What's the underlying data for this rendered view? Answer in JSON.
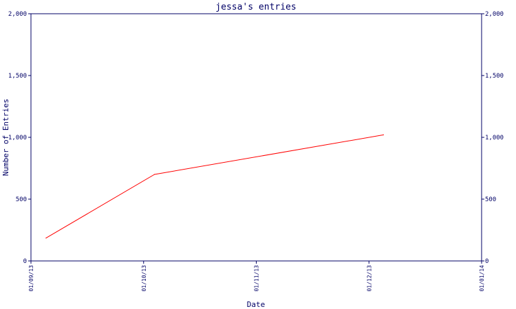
{
  "chart_data": {
    "type": "line",
    "title": "jessa's entries",
    "xlabel": "Date",
    "ylabel": "Number of Entries",
    "x_ticks": [
      "01/09/13",
      "01/10/13",
      "01/11/13",
      "01/12/13",
      "01/01/14"
    ],
    "y_ticks": [
      "0",
      "500",
      "1,000",
      "1,500",
      "2,000"
    ],
    "ylim": [
      0,
      2000
    ],
    "xlim": [
      "2013-09-01",
      "2014-01-01"
    ],
    "grid": false,
    "series": [
      {
        "color": "#ff0000",
        "points": [
          {
            "x": "2013-09-05",
            "y": 185
          },
          {
            "x": "2013-10-04",
            "y": 700
          },
          {
            "x": "2013-12-05",
            "y": 1020
          }
        ]
      }
    ]
  },
  "colors": {
    "axis": "#000066",
    "series": "#ff0000"
  }
}
